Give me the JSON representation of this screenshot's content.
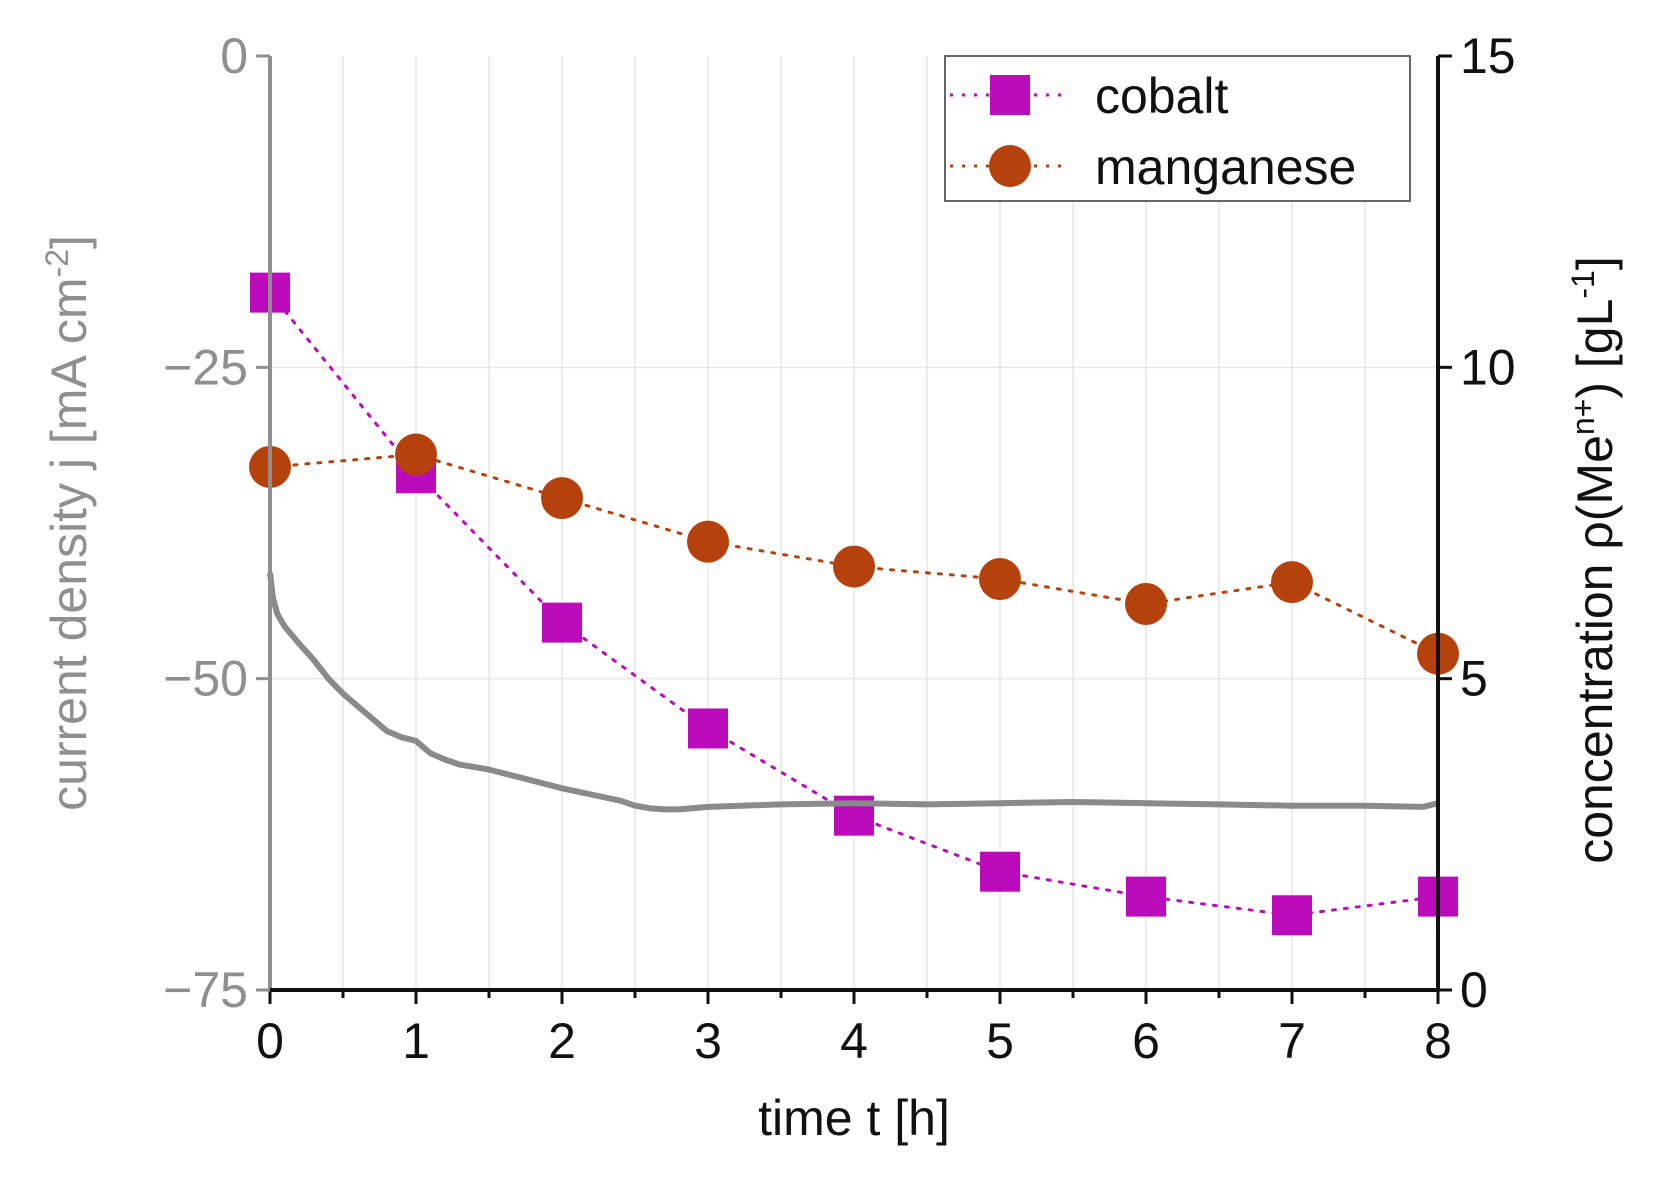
{
  "chart_data": {
    "type": "line",
    "x_axis": {
      "title_main": "time t [h]",
      "range": [
        0,
        8
      ],
      "major_ticks": [
        0,
        1,
        2,
        3,
        4,
        5,
        6,
        7,
        8
      ],
      "tick_labels": [
        "0",
        "1",
        "2",
        "3",
        "4",
        "5",
        "6",
        "7",
        "8"
      ]
    },
    "y_left": {
      "title_main": "current density j [mA cm",
      "title_sup": "-2",
      "title_tail": "]",
      "range": [
        -75,
        0
      ],
      "ticks": [
        0,
        -25,
        -50,
        -75
      ],
      "tick_labels": [
        "0",
        "−25",
        "−50",
        "−75"
      ],
      "color": "#8f8f8f"
    },
    "y_right": {
      "title_main": "concentration ρ(Me",
      "title_sup1": "n+",
      "title_mid": ") [gL",
      "title_sup2": "-1",
      "title_tail": "]",
      "range": [
        0,
        15
      ],
      "ticks": [
        0,
        5,
        10,
        15
      ],
      "tick_labels": [
        "0",
        "5",
        "10",
        "15"
      ],
      "color": "#111111"
    },
    "grid": true,
    "legend_position": "top-right",
    "series": [
      {
        "name": "cobalt",
        "axis": "right",
        "marker": "square",
        "line": "dotted",
        "color": "#bb0bbb",
        "x": [
          0,
          1,
          2,
          3,
          4,
          5,
          6,
          7,
          8
        ],
        "y": [
          11.2,
          8.3,
          5.9,
          4.2,
          2.8,
          1.9,
          1.5,
          1.2,
          1.5
        ]
      },
      {
        "name": "manganese",
        "axis": "right",
        "marker": "circle",
        "line": "dotted",
        "color": "#b5420c",
        "x": [
          0,
          1,
          2,
          3,
          4,
          5,
          6,
          7,
          8
        ],
        "y": [
          8.4,
          8.6,
          7.9,
          7.2,
          6.8,
          6.6,
          6.2,
          6.55,
          5.4
        ]
      },
      {
        "axis": "left",
        "marker": "none",
        "line": "solid",
        "color": "#8a8a8a",
        "x": [
          0,
          0.02,
          0.05,
          0.1,
          0.2,
          0.3,
          0.4,
          0.5,
          0.6,
          0.7,
          0.8,
          0.9,
          1.0,
          1.05,
          1.1,
          1.2,
          1.3,
          1.5,
          1.7,
          1.9,
          2.0,
          2.2,
          2.4,
          2.5,
          2.6,
          2.7,
          2.8,
          3.0,
          3.5,
          4.0,
          4.5,
          5.0,
          5.5,
          6.0,
          6.5,
          7.0,
          7.5,
          7.9,
          8.0
        ],
        "y": [
          -41.5,
          -43.5,
          -44.8,
          -45.8,
          -47.2,
          -48.5,
          -50.0,
          -51.2,
          -52.2,
          -53.2,
          -54.2,
          -54.7,
          -55.0,
          -55.5,
          -56.0,
          -56.5,
          -56.9,
          -57.3,
          -57.9,
          -58.5,
          -58.8,
          -59.3,
          -59.8,
          -60.2,
          -60.4,
          -60.5,
          -60.5,
          -60.3,
          -60.1,
          -60.0,
          -60.1,
          -60.0,
          -59.9,
          -60.0,
          -60.1,
          -60.2,
          -60.2,
          -60.3,
          -60.0
        ]
      }
    ]
  }
}
